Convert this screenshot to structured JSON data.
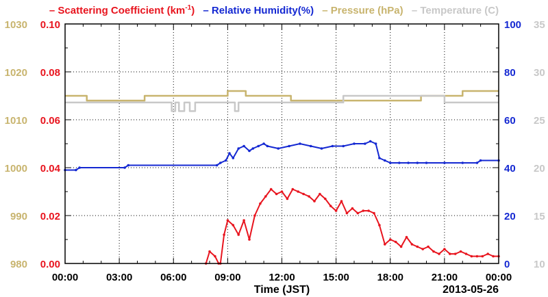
{
  "legend": {
    "scat_prefix": "Scattering Coefficient (km",
    "scat_sup": "-1",
    "scat_suffix": ")",
    "rh": "Relative Humidity(%)",
    "pressure": "Pressure (hPa)",
    "temperature": "Temperature (C)",
    "dash": "–"
  },
  "chart_data": {
    "type": "line",
    "xlabel": "Time (JST)",
    "date_label": "2013-05-26",
    "x_ticks": [
      "00:00",
      "03:00",
      "06:00",
      "09:00",
      "12:00",
      "15:00",
      "18:00",
      "21:00",
      "00:00"
    ],
    "xlim_hours": [
      0,
      24
    ],
    "grid": true,
    "legend_position": "top",
    "axes": {
      "pressure": {
        "ticks": [
          "980",
          "990",
          "1000",
          "1010",
          "1020",
          "1030"
        ],
        "range": [
          980,
          1030
        ],
        "color": "#c8b46e",
        "side": "left-outer"
      },
      "scattering": {
        "ticks": [
          "0.00",
          "0.02",
          "0.04",
          "0.06",
          "0.08",
          "0.10"
        ],
        "range": [
          0,
          0.1
        ],
        "color": "#e8141e",
        "side": "left-inner"
      },
      "rh": {
        "ticks": [
          "0",
          "20",
          "40",
          "60",
          "80",
          "100"
        ],
        "range": [
          0,
          100
        ],
        "color": "#1428d2",
        "side": "right-inner"
      },
      "temperature": {
        "ticks": [
          "10",
          "15",
          "20",
          "25",
          "30",
          "35"
        ],
        "range": [
          10,
          35
        ],
        "color": "#c8c8c8",
        "side": "right-outer"
      }
    },
    "series": [
      {
        "name": "Scattering Coefficient (km-1)",
        "axis": "scattering",
        "color": "#e8141e",
        "x": [
          7.8,
          8.0,
          8.3,
          8.5,
          8.6,
          8.8,
          9.0,
          9.3,
          9.6,
          9.9,
          10.2,
          10.5,
          10.8,
          11.1,
          11.4,
          11.7,
          12.0,
          12.3,
          12.6,
          12.9,
          13.2,
          13.5,
          13.8,
          14.1,
          14.4,
          14.7,
          15.0,
          15.3,
          15.6,
          15.9,
          16.2,
          16.5,
          16.8,
          17.1,
          17.4,
          17.7,
          18.0,
          18.3,
          18.6,
          18.9,
          19.2,
          19.5,
          19.8,
          20.1,
          20.4,
          20.7,
          21.0,
          21.3,
          21.6,
          21.9,
          22.2,
          22.5,
          22.8,
          23.1,
          23.4,
          23.7,
          24.0
        ],
        "y": [
          0.0,
          0.005,
          0.003,
          0.0,
          0.0,
          0.012,
          0.018,
          0.016,
          0.012,
          0.018,
          0.01,
          0.02,
          0.025,
          0.028,
          0.031,
          0.029,
          0.03,
          0.027,
          0.031,
          0.03,
          0.029,
          0.028,
          0.026,
          0.029,
          0.027,
          0.024,
          0.022,
          0.026,
          0.021,
          0.023,
          0.021,
          0.022,
          0.022,
          0.021,
          0.016,
          0.008,
          0.01,
          0.009,
          0.007,
          0.011,
          0.008,
          0.007,
          0.006,
          0.007,
          0.005,
          0.004,
          0.006,
          0.004,
          0.004,
          0.005,
          0.004,
          0.003,
          0.003,
          0.003,
          0.004,
          0.003,
          0.003
        ]
      },
      {
        "name": "Relative Humidity(%)",
        "axis": "rh",
        "color": "#1428d2",
        "x": [
          0.0,
          0.6,
          0.8,
          3.3,
          3.5,
          8.4,
          8.6,
          8.9,
          9.1,
          9.3,
          9.6,
          9.9,
          10.2,
          10.4,
          10.7,
          11.0,
          11.2,
          11.8,
          12.4,
          13.0,
          13.6,
          14.2,
          14.8,
          15.4,
          16.0,
          16.6,
          16.9,
          17.2,
          17.4,
          17.7,
          18.0,
          18.5,
          19.0,
          19.5,
          20.0,
          21.0,
          22.0,
          22.8,
          23.0,
          24.0
        ],
        "y": [
          39,
          39,
          40,
          40,
          41,
          41,
          42,
          43,
          46,
          44,
          48,
          49,
          47,
          48,
          49,
          50,
          49,
          48,
          49,
          50,
          49,
          48,
          49,
          49,
          50,
          50,
          51,
          50,
          44,
          43,
          42,
          42,
          42,
          42,
          42,
          42,
          42,
          42,
          43,
          43
        ]
      },
      {
        "name": "Pressure (hPa)",
        "axis": "pressure",
        "color": "#c8b46e",
        "x": [
          0.0,
          1.2,
          4.4,
          9.0,
          10.0,
          12.5,
          15.3,
          18.0,
          19.7,
          21.0,
          22.0,
          24.0
        ],
        "y": [
          1015,
          1014,
          1015,
          1016,
          1015,
          1014,
          1014,
          1014,
          1015,
          1015,
          1016,
          1016
        ],
        "step": true
      },
      {
        "name": "Temperature (C)",
        "axis": "temperature",
        "color": "#c8c8c8",
        "x": [
          0.0,
          0.5,
          5.8,
          5.9,
          6.1,
          6.3,
          6.6,
          6.9,
          7.2,
          9.2,
          9.4,
          9.6,
          12.0,
          15.4,
          18.5,
          21.0,
          24.0
        ],
        "y": [
          26.8,
          26.8,
          26.8,
          25.9,
          26.8,
          25.9,
          26.8,
          25.9,
          26.8,
          26.8,
          25.9,
          26.8,
          26.8,
          27.5,
          27.5,
          26.8,
          26.8
        ],
        "step": true
      }
    ]
  }
}
